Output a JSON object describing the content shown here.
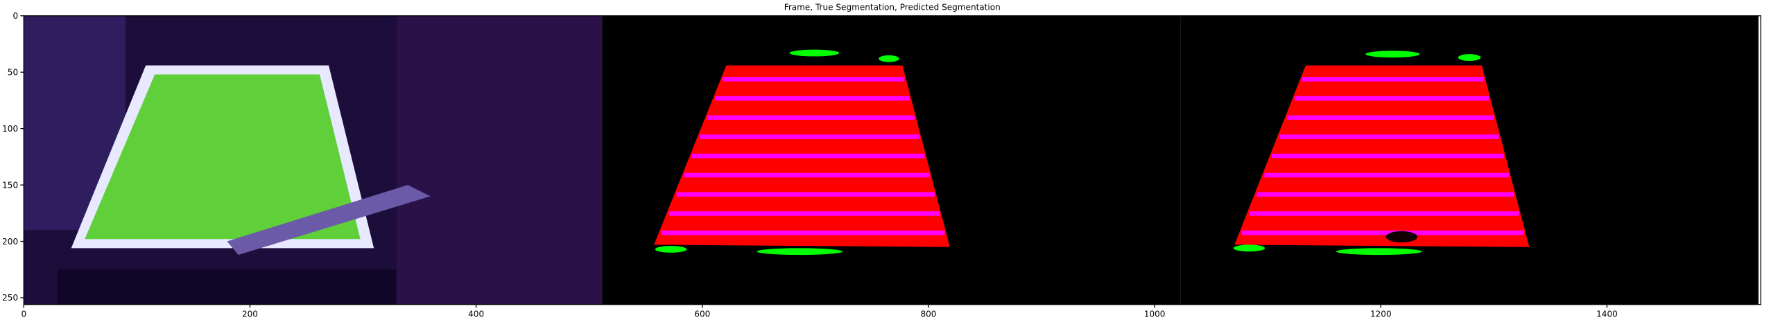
{
  "chart_data": {
    "type": "image",
    "title": "Frame, True Segmentation, Predicted Segmentation",
    "xlim": [
      0,
      1536
    ],
    "ylim": [
      256,
      0
    ],
    "xticks": [
      0,
      200,
      400,
      600,
      800,
      1000,
      1200,
      1400
    ],
    "yticks": [
      0,
      50,
      100,
      150,
      200,
      250
    ]
  }
}
